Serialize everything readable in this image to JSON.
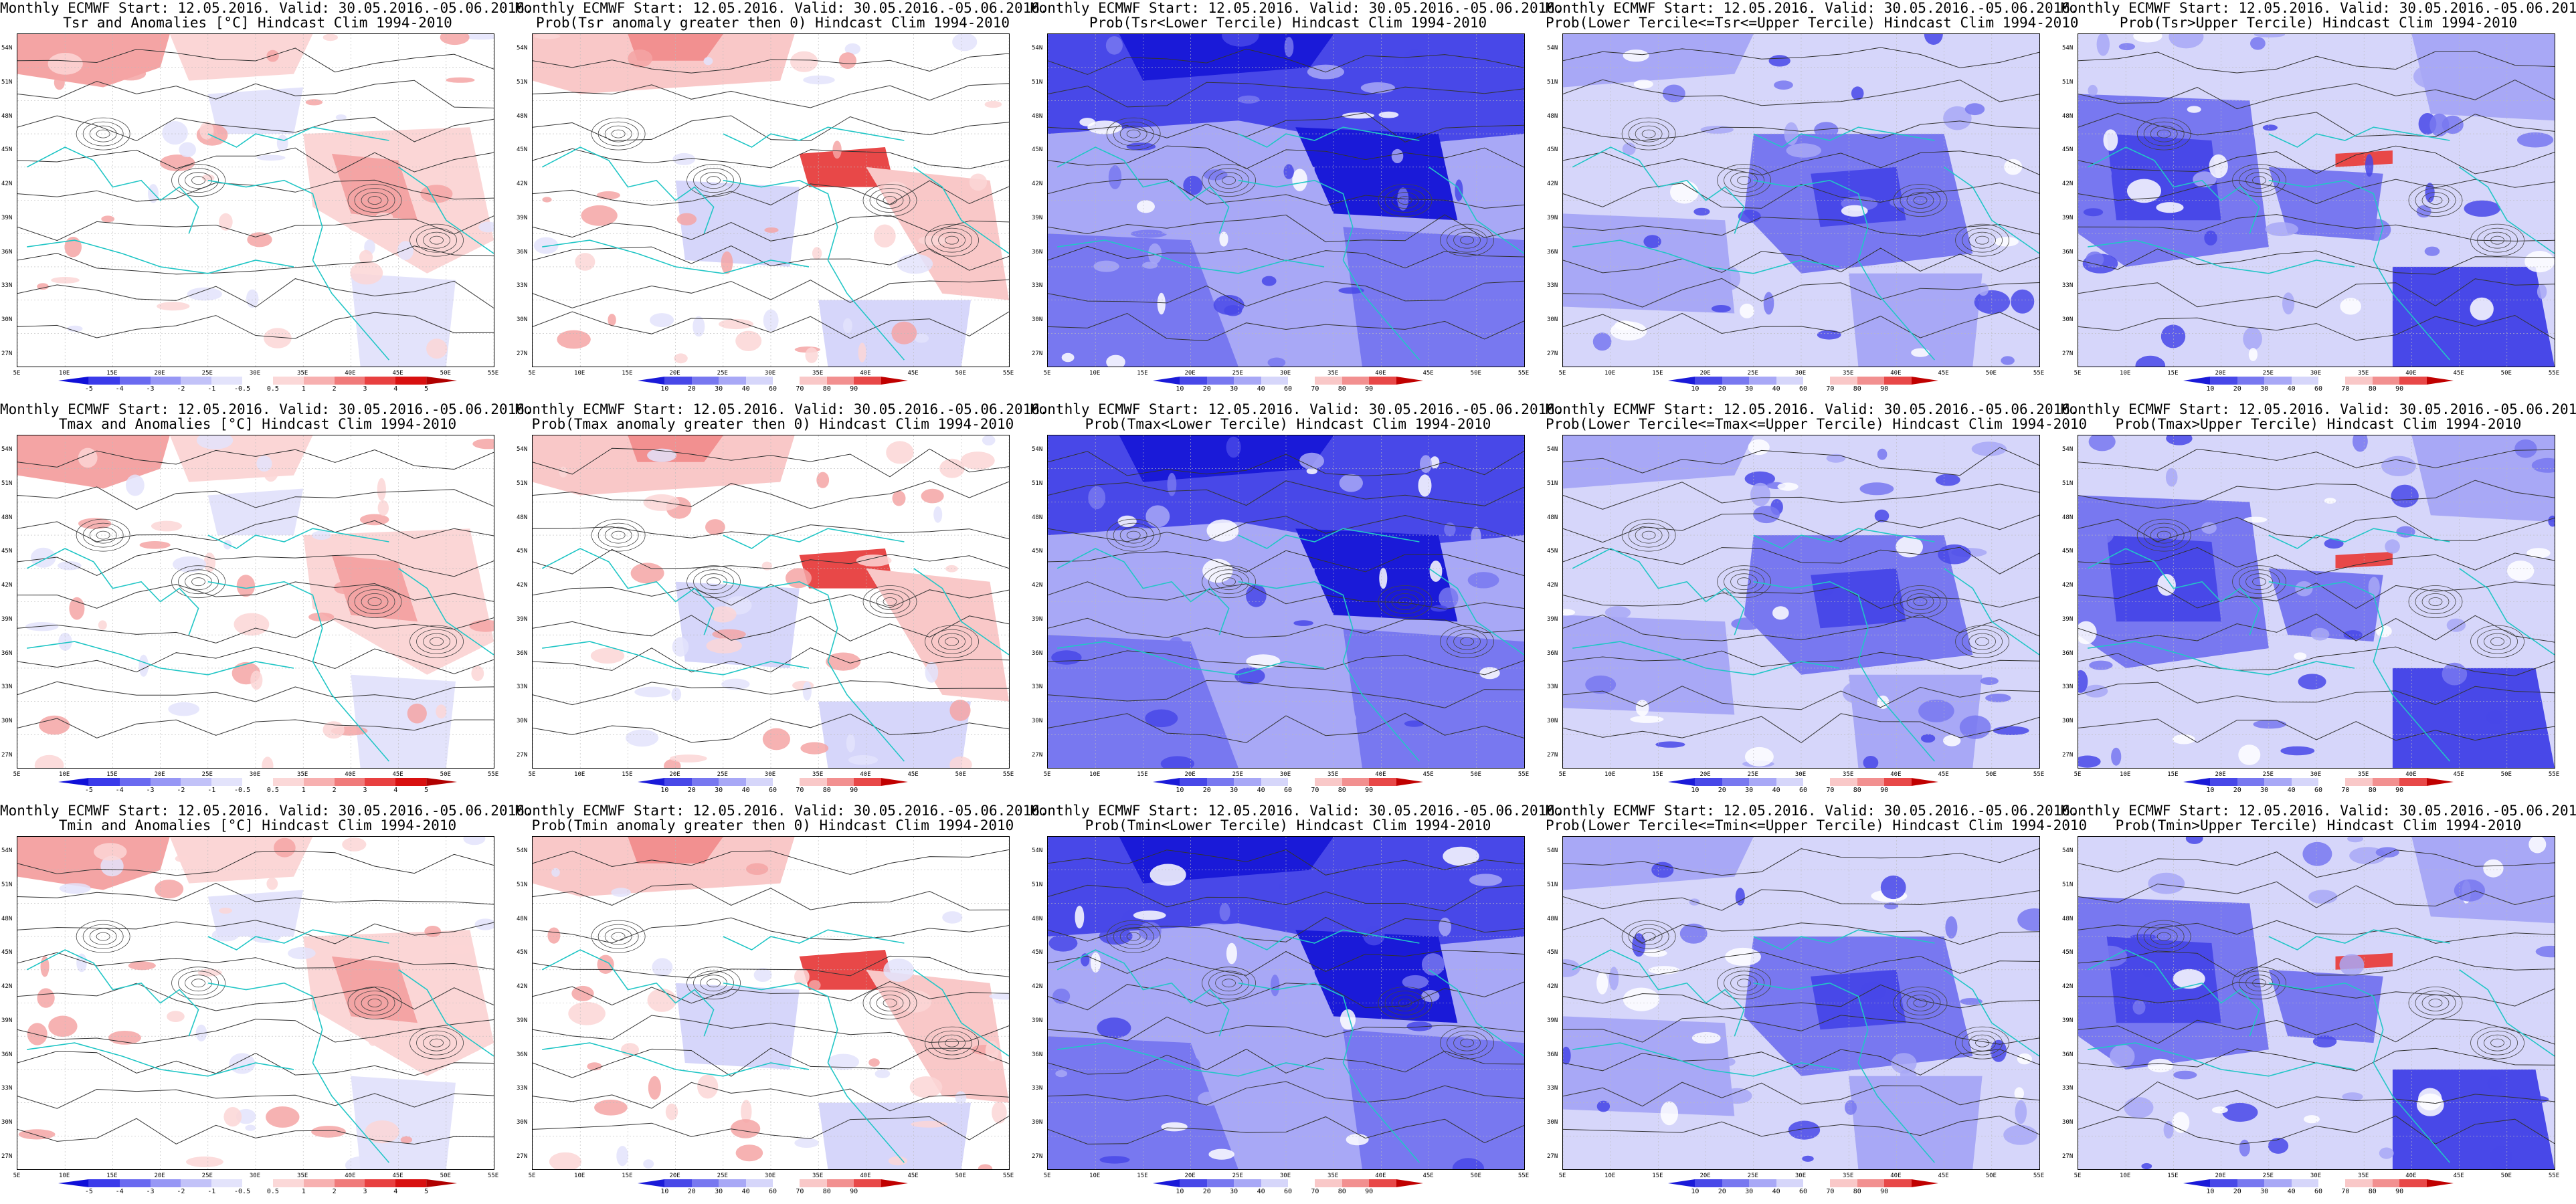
{
  "lat_labels": [
    "54N",
    "51N",
    "48N",
    "45N",
    "42N",
    "39N",
    "36N",
    "33N",
    "30N",
    "27N"
  ],
  "lon_labels": [
    "5E",
    "10E",
    "15E",
    "20E",
    "25E",
    "30E",
    "35E",
    "40E",
    "45E",
    "50E",
    "55E"
  ],
  "colorbar_anom": {
    "labels": [
      "-5",
      "-4",
      "-3",
      "-2",
      "-1",
      "-0.5",
      "0.5",
      "1",
      "2",
      "3",
      "4",
      "5"
    ],
    "colors": [
      "#1010d8",
      "#3b3bea",
      "#6a6af0",
      "#9797f5",
      "#c2c2f8",
      "#e3e3fb",
      "#ffffff",
      "#fbd8d8",
      "#f7b0b0",
      "#f07a7a",
      "#e84040",
      "#d81010",
      "#b00000"
    ]
  },
  "colorbar_prob": {
    "labels": [
      "10",
      "20",
      "30",
      "40",
      "60",
      "70",
      "80",
      "90"
    ],
    "colors": [
      "#1a1ad8",
      "#4848e8",
      "#7878f0",
      "#a8a8f6",
      "#d6d6fa",
      "#ffffff",
      "#f9c8c8",
      "#f29090",
      "#e84848",
      "#c00000"
    ]
  },
  "panels": [
    {
      "title1": "Monthly ECMWF Start: 12.05.2016. Valid: 30.05.2016.-05.06.2016.",
      "title2": "Tsr and Anomalies [°C] Hindcast Clim 1994-2010",
      "kind": "anom",
      "colorbar": "anom"
    },
    {
      "title1": "Monthly ECMWF Start: 12.05.2016. Valid: 30.05.2016.-05.06.2016.",
      "title2": "Prob(Tsr anomaly greater then 0) Hindcast Clim 1994-2010",
      "kind": "prob0",
      "colorbar": "prob"
    },
    {
      "title1": "Monthly ECMWF Start: 12.05.2016. Valid: 30.05.2016.-05.06.2016.",
      "title2": "Prob(Tsr<Lower Tercile) Hindcast Clim 1994-2010",
      "kind": "lower",
      "colorbar": "prob"
    },
    {
      "title1": "Monthly ECMWF Start: 12.05.2016. Valid: 30.05.2016.-05.06.2016.",
      "title2": "Prob(Lower Tercile<=Tsr<=Upper Tercile) Hindcast Clim 1994-2010",
      "kind": "middle",
      "colorbar": "prob"
    },
    {
      "title1": "Monthly ECMWF Start: 12.05.2016. Valid: 30.05.2016.-05.06.2016.",
      "title2": "Prob(Tsr>Upper Tercile) Hindcast Clim 1994-2010",
      "kind": "upper",
      "colorbar": "prob"
    },
    {
      "title1": "Monthly ECMWF Start: 12.05.2016. Valid: 30.05.2016.-05.06.2016.",
      "title2": "Tmax and Anomalies [°C] Hindcast Clim 1994-2010",
      "kind": "anom",
      "colorbar": "anom"
    },
    {
      "title1": "Monthly ECMWF Start: 12.05.2016. Valid: 30.05.2016.-05.06.2016.",
      "title2": "Prob(Tmax anomaly greater then 0) Hindcast Clim 1994-2010",
      "kind": "prob0",
      "colorbar": "prob"
    },
    {
      "title1": "Monthly ECMWF Start: 12.05.2016. Valid: 30.05.2016.-05.06.2016.",
      "title2": "Prob(Tmax<Lower Tercile) Hindcast Clim 1994-2010",
      "kind": "lower",
      "colorbar": "prob"
    },
    {
      "title1": "Monthly ECMWF Start: 12.05.2016. Valid: 30.05.2016.-05.06.2016.",
      "title2": "Prob(Lower Tercile<=Tmax<=Upper Tercile) Hindcast Clim 1994-2010",
      "kind": "middle",
      "colorbar": "prob"
    },
    {
      "title1": "Monthly ECMWF Start: 12.05.2016. Valid: 30.05.2016.-05.06.2016.",
      "title2": "Prob(Tmax>Upper Tercile) Hindcast Clim 1994-2010",
      "kind": "upper",
      "colorbar": "prob"
    },
    {
      "title1": "Monthly ECMWF Start: 12.05.2016. Valid: 30.05.2016.-05.06.2016.",
      "title2": "Tmin and Anomalies [°C] Hindcast Clim 1994-2010",
      "kind": "anom",
      "colorbar": "anom"
    },
    {
      "title1": "Monthly ECMWF Start: 12.05.2016. Valid: 30.05.2016.-05.06.2016.",
      "title2": "Prob(Tmin anomaly greater then 0) Hindcast Clim 1994-2010",
      "kind": "prob0",
      "colorbar": "prob"
    },
    {
      "title1": "Monthly ECMWF Start: 12.05.2016. Valid: 30.05.2016.-05.06.2016.",
      "title2": "Prob(Tmin<Lower Tercile) Hindcast Clim 1994-2010",
      "kind": "lower",
      "colorbar": "prob"
    },
    {
      "title1": "Monthly ECMWF Start: 12.05.2016. Valid: 30.05.2016.-05.06.2016.",
      "title2": "Prob(Lower Tercile<=Tmin<=Upper Tercile) Hindcast Clim 1994-2010",
      "kind": "middle",
      "colorbar": "prob"
    },
    {
      "title1": "Monthly ECMWF Start: 12.05.2016. Valid: 30.05.2016.-05.06.2016.",
      "title2": "Prob(Tmin>Upper Tercile) Hindcast Clim 1994-2010",
      "kind": "upper",
      "colorbar": "prob"
    }
  ]
}
